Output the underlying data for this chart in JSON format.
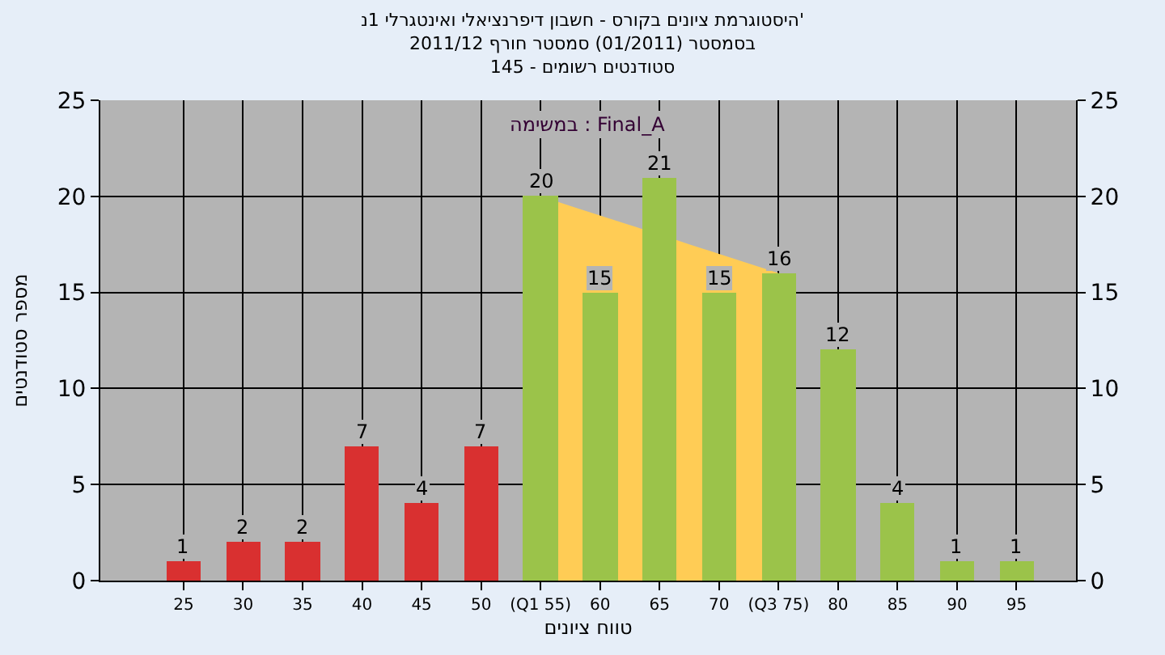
{
  "chart_data": {
    "type": "bar",
    "title": "היסטוגרמת ציונים בקורס - חשבון דיפרנציאלי ואינטגרלי 1נ'",
    "subtitle": "בסמסטר (01/2011) סמסטר חורף 2011/12\nסטודנטים רשומים - 145",
    "xlabel": "טווח ציונים",
    "ylabel": "מספר סטודנטים",
    "annotations": [
      "במשימה : Final_A"
    ],
    "x": [
      25,
      30,
      35,
      40,
      45,
      50,
      55,
      60,
      65,
      70,
      75,
      80,
      85,
      90,
      95
    ],
    "series": [
      {
        "type": "area",
        "color": "#ffcc55",
        "x": [
          55,
          60,
          65,
          70,
          75
        ],
        "values": [
          20,
          19,
          null,
          17,
          16
        ]
      },
      {
        "values": [
          1,
          2,
          2,
          7,
          4,
          7,
          20,
          15,
          21,
          15,
          16,
          12,
          4,
          1,
          1
        ],
        "colors": [
          "#d93030",
          "#d93030",
          "#d93030",
          "#d93030",
          "#d93030",
          "#d93030",
          "#9bc34a",
          "#9bc34a",
          "#9bc34a",
          "#9bc34a",
          "#9bc34a",
          "#9bc34a",
          "#9bc34a",
          "#9bc34a",
          "#9bc34a"
        ],
        "data_labels": true
      }
    ],
    "xlim": [
      18,
      100
    ],
    "xticks": [
      25,
      30,
      35,
      40,
      45,
      50,
      {
        "value": 55,
        "label": "(Q1 55)"
      },
      60,
      65,
      70,
      {
        "value": 75,
        "label": "(Q3 75)"
      },
      80,
      85,
      90,
      95
    ],
    "ylim": [
      0,
      25
    ],
    "yticks": [
      0,
      5,
      10,
      15,
      20,
      25
    ],
    "y2lim": [
      0,
      25
    ],
    "y2ticks": [
      0,
      5,
      10,
      15,
      20,
      25
    ],
    "grid": true
  }
}
